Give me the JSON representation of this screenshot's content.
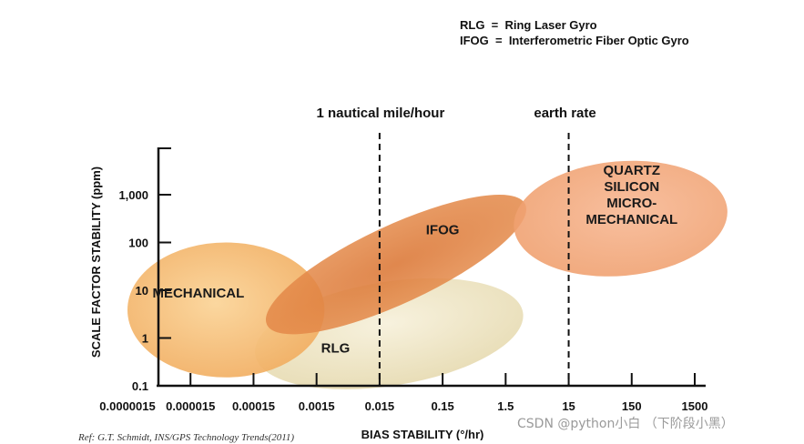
{
  "legend": [
    {
      "abbr": "RLG",
      "text": "RLG  =  Ring Laser Gyro"
    },
    {
      "abbr": "IFOG",
      "text": "IFOG  =  Interferometric Fiber Optic Gyro"
    }
  ],
  "reference": "Ref: G.T. Schmidt, INS/GPS Technology Trends(2011)",
  "watermark": "CSDN @python小白 （下阶段小黑）",
  "chart_data": {
    "type": "region",
    "title": "",
    "xlabel": "BIAS STABILITY (°/hr)",
    "ylabel": "SCALE FACTOR STABILITY (ppm)",
    "x_scale": "log",
    "y_scale": "log",
    "x_ticks": [
      {
        "value": 1.5e-06,
        "label": "0.0000015"
      },
      {
        "value": 1.5e-05,
        "label": "0.000015"
      },
      {
        "value": 0.00015,
        "label": "0.00015"
      },
      {
        "value": 0.0015,
        "label": "0.0015"
      },
      {
        "value": 0.015,
        "label": "0.015"
      },
      {
        "value": 0.15,
        "label": "0.15"
      },
      {
        "value": 1.5,
        "label": "1.5"
      },
      {
        "value": 15,
        "label": "15"
      },
      {
        "value": 150,
        "label": "150"
      },
      {
        "value": 1500,
        "label": "1500"
      }
    ],
    "y_ticks": [
      {
        "value": 0.1,
        "label": "0.1"
      },
      {
        "value": 1,
        "label": "1"
      },
      {
        "value": 10,
        "label": "10"
      },
      {
        "value": 100,
        "label": "100"
      },
      {
        "value": 1000,
        "label": "1,000"
      }
    ],
    "xlim": [
      1.5e-06,
      5000
    ],
    "ylim": [
      0.1,
      5000
    ],
    "reference_lines": [
      {
        "name": "nautical-mile-line",
        "x": 0.015,
        "label": "1 nautical mile/hour"
      },
      {
        "name": "earth-rate-line",
        "x": 15,
        "label": "earth rate"
      }
    ],
    "regions": [
      {
        "name": "rlg-region",
        "label": "RLG",
        "x_range": [
          0.00015,
          3
        ],
        "y_range": [
          0.1,
          15
        ],
        "tilt": -9,
        "color": "#ece2bd",
        "label_at": [
          0.003,
          0.5
        ]
      },
      {
        "name": "mechanical-region",
        "label": "MECHANICAL",
        "x_range": [
          1.5e-06,
          0.002
        ],
        "y_range": [
          0.15,
          100
        ],
        "tilt": 0,
        "color": "#f3b66e",
        "label_at": [
          2e-05,
          7
        ]
      },
      {
        "name": "ifog-region",
        "label": "IFOG",
        "x_range": [
          0.00015,
          5
        ],
        "y_range": [
          0.4,
          3000
        ],
        "tilt": -25,
        "color": "#e0803c",
        "label_at": [
          0.15,
          150
        ]
      },
      {
        "name": "quartz-region",
        "label": "QUARTZ SILICON MICRO- MECHANICAL",
        "label_lines": [
          "QUARTZ",
          "SILICON",
          "MICRO-",
          "MECHANICAL"
        ],
        "x_range": [
          2,
          5000
        ],
        "y_range": [
          20,
          5000
        ],
        "tilt": -5,
        "color": "#ef9e6c",
        "label_at": [
          150,
          800
        ]
      }
    ]
  }
}
